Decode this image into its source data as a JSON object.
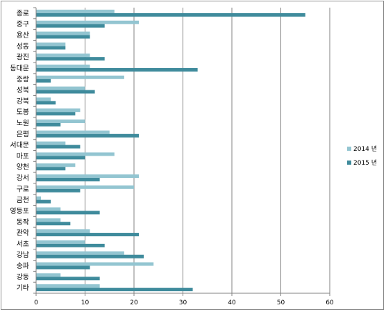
{
  "chart_data": {
    "type": "bar",
    "orientation": "horizontal",
    "categories": [
      "종로",
      "중구",
      "용산",
      "성동",
      "광진",
      "동대문",
      "중랑",
      "성북",
      "강북",
      "도봉",
      "노원",
      "은평",
      "서대문",
      "마포",
      "양천",
      "강서",
      "구로",
      "금천",
      "영등포",
      "동작",
      "관악",
      "서초",
      "강남",
      "송파",
      "강동",
      "기타"
    ],
    "series": [
      {
        "name": "2014 년",
        "color": "#93c5d1",
        "values": [
          16,
          21,
          11,
          6,
          11,
          11,
          18,
          10,
          3,
          9,
          10,
          15,
          6,
          16,
          8,
          21,
          20,
          1,
          5,
          5,
          11,
          10,
          18,
          24,
          5,
          13
        ]
      },
      {
        "name": "2015 년",
        "color": "#3f8b9c",
        "values": [
          55,
          14,
          11,
          6,
          14,
          33,
          3,
          12,
          4,
          8,
          5,
          21,
          9,
          10,
          6,
          13,
          9,
          3,
          13,
          7,
          21,
          14,
          22,
          11,
          13,
          32
        ]
      }
    ],
    "xlim": [
      0,
      60
    ],
    "xticks": [
      0,
      10,
      20,
      30,
      40,
      50,
      60
    ],
    "grid": true,
    "legend_position": "right"
  }
}
